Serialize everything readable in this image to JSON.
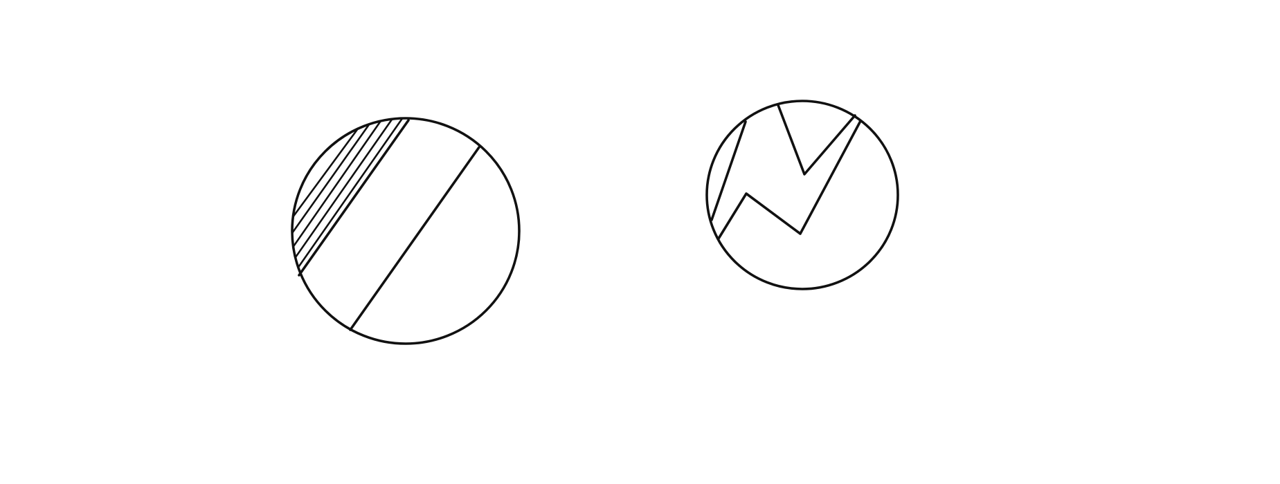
{
  "diagram": {
    "background_color": "#ffffff",
    "stroke_color": "#111111",
    "figures": [
      {
        "name": "left-figure",
        "shape": "circle",
        "description_elements": [
          "outline",
          "diagonal-chord-upper",
          "diagonal-chord-lower",
          "hatched-segment"
        ],
        "hatch_line_count": 6
      },
      {
        "name": "right-figure",
        "shape": "circle",
        "description_elements": [
          "outline",
          "zigzag-crack",
          "notch"
        ]
      }
    ]
  }
}
